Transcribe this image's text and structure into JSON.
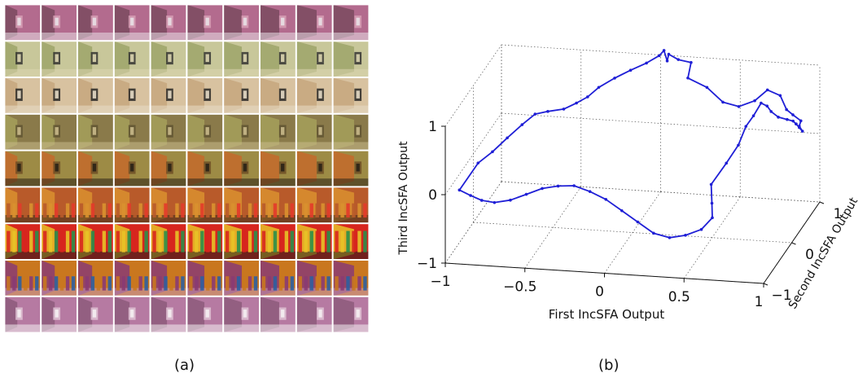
{
  "panel_a": {
    "caption": "(a)",
    "rows": 9,
    "cols": 10,
    "row_themes": [
      {
        "name": "pink-wall-with-marker",
        "colors": [
          "#b36b8e",
          "#7a4a5f",
          "#d9a3b8",
          "#e8e0e6"
        ]
      },
      {
        "name": "pale-green-wall-with-glyphs",
        "colors": [
          "#c8c79a",
          "#9ea56a",
          "#2b2b2b",
          "#ddd6b0"
        ]
      },
      {
        "name": "beige-wall-with-glyph-signs",
        "colors": [
          "#d8c2a0",
          "#c7a77e",
          "#1e1e1e",
          "#e7dcc7"
        ]
      },
      {
        "name": "olive-corridor-corner",
        "colors": [
          "#8a7a4a",
          "#a4a05b",
          "#5c5130",
          "#c9b98b"
        ]
      },
      {
        "name": "orange-floor-olive-wall",
        "colors": [
          "#9d8b45",
          "#c46a2c",
          "#6b4b23",
          "#2a2216"
        ]
      },
      {
        "name": "orange-wall-with-bookshelf",
        "colors": [
          "#b85a2a",
          "#d9912f",
          "#e33b2a",
          "#3a2a1a"
        ]
      },
      {
        "name": "colorful-bookshelf",
        "colors": [
          "#d7261e",
          "#e8c227",
          "#2a8f4a",
          "#1d1d1d"
        ]
      },
      {
        "name": "bookshelf-to-pink-wall",
        "colors": [
          "#c9771f",
          "#8a3b73",
          "#2d5fa0",
          "#c79ab7"
        ]
      },
      {
        "name": "pink-wall-with-marker-end",
        "colors": [
          "#b67aa2",
          "#8d5a7b",
          "#e4c8d8",
          "#f4f0f2"
        ]
      }
    ]
  },
  "panel_b": {
    "caption": "(b)"
  },
  "chart_data": {
    "type": "line",
    "projection": "3d",
    "title": "",
    "xlabel": "First IncSFA Output",
    "ylabel": "Second IncSFA Output",
    "zlabel": "Third IncSFA Output",
    "xlim": [
      -1,
      1
    ],
    "ylim": [
      -1,
      1
    ],
    "zlim": [
      -1,
      1
    ],
    "x_ticks": [
      -1,
      -0.5,
      0,
      0.5,
      1
    ],
    "x_tick_labels": [
      "−1",
      "−0.5",
      "0",
      "0.5",
      "1"
    ],
    "y_ticks": [
      -1,
      0,
      1
    ],
    "y_tick_labels": [
      "−1",
      "0",
      "1"
    ],
    "z_ticks": [
      -1,
      0,
      1
    ],
    "z_tick_labels": [
      "−1",
      "0",
      "1"
    ],
    "grid": true,
    "line_color": "#1f1fd6",
    "marker": "point",
    "series": [
      {
        "x": [
          -0.92,
          -0.85,
          -0.78,
          -0.7,
          -0.6,
          -0.5,
          -0.4,
          -0.3,
          -0.2,
          -0.1,
          0.0,
          0.1,
          0.2,
          0.3,
          0.4,
          0.5,
          0.6,
          0.66,
          0.64,
          0.6,
          0.66,
          0.7,
          0.73,
          0.76,
          0.79,
          0.81,
          0.8,
          0.81,
          0.83,
          0.85,
          0.86,
          0.88,
          0.86,
          0.9,
          0.88,
          0.89,
          0.84,
          0.8,
          0.76,
          0.68,
          0.6,
          0.5,
          0.4,
          0.3,
          0.18,
          0.2,
          0.12,
          0.06,
          0.05,
          0.03,
          0.0,
          -0.08,
          -0.18,
          -0.28,
          -0.38,
          -0.45,
          -0.52,
          -0.6,
          -0.7,
          -0.78,
          -0.8,
          -0.84,
          -0.88,
          -0.9,
          -0.92
        ],
        "y": [
          -0.95,
          -0.95,
          -0.95,
          -0.95,
          -0.95,
          -0.95,
          -0.95,
          -0.95,
          -0.95,
          -0.95,
          -0.95,
          -0.95,
          -0.95,
          -0.95,
          -0.95,
          -0.95,
          -0.95,
          -0.9,
          -0.8,
          -0.6,
          -0.4,
          -0.2,
          -0.1,
          0.0,
          0.1,
          0.2,
          0.4,
          0.6,
          0.8,
          0.9,
          0.95,
          0.95,
          0.95,
          0.95,
          0.95,
          0.95,
          0.95,
          0.95,
          0.95,
          0.95,
          0.95,
          0.95,
          0.95,
          0.95,
          0.95,
          0.95,
          0.95,
          0.95,
          0.95,
          0.95,
          0.95,
          0.95,
          0.95,
          0.95,
          0.95,
          0.95,
          0.95,
          0.95,
          0.95,
          0.95,
          0.6,
          0.3,
          0.0,
          -0.4,
          -0.95
        ],
        "z": [
          0.05,
          -0.02,
          -0.08,
          -0.1,
          -0.05,
          0.05,
          0.15,
          0.2,
          0.22,
          0.15,
          0.05,
          -0.1,
          -0.25,
          -0.4,
          -0.45,
          -0.4,
          -0.3,
          -0.15,
          0.0,
          0.15,
          0.35,
          0.5,
          0.72,
          0.82,
          0.95,
          0.85,
          0.65,
          0.45,
          0.3,
          0.22,
          0.15,
          0.1,
          0.15,
          0.05,
          0.12,
          0.2,
          0.28,
          0.35,
          0.55,
          0.62,
          0.45,
          0.35,
          0.4,
          0.6,
          0.72,
          0.95,
          0.98,
          1.05,
          0.95,
          1.1,
          1.02,
          0.9,
          0.78,
          0.65,
          0.5,
          0.35,
          0.25,
          0.15,
          0.1,
          0.05,
          0.1,
          0.08,
          0.05,
          0.12,
          0.05
        ]
      }
    ]
  }
}
